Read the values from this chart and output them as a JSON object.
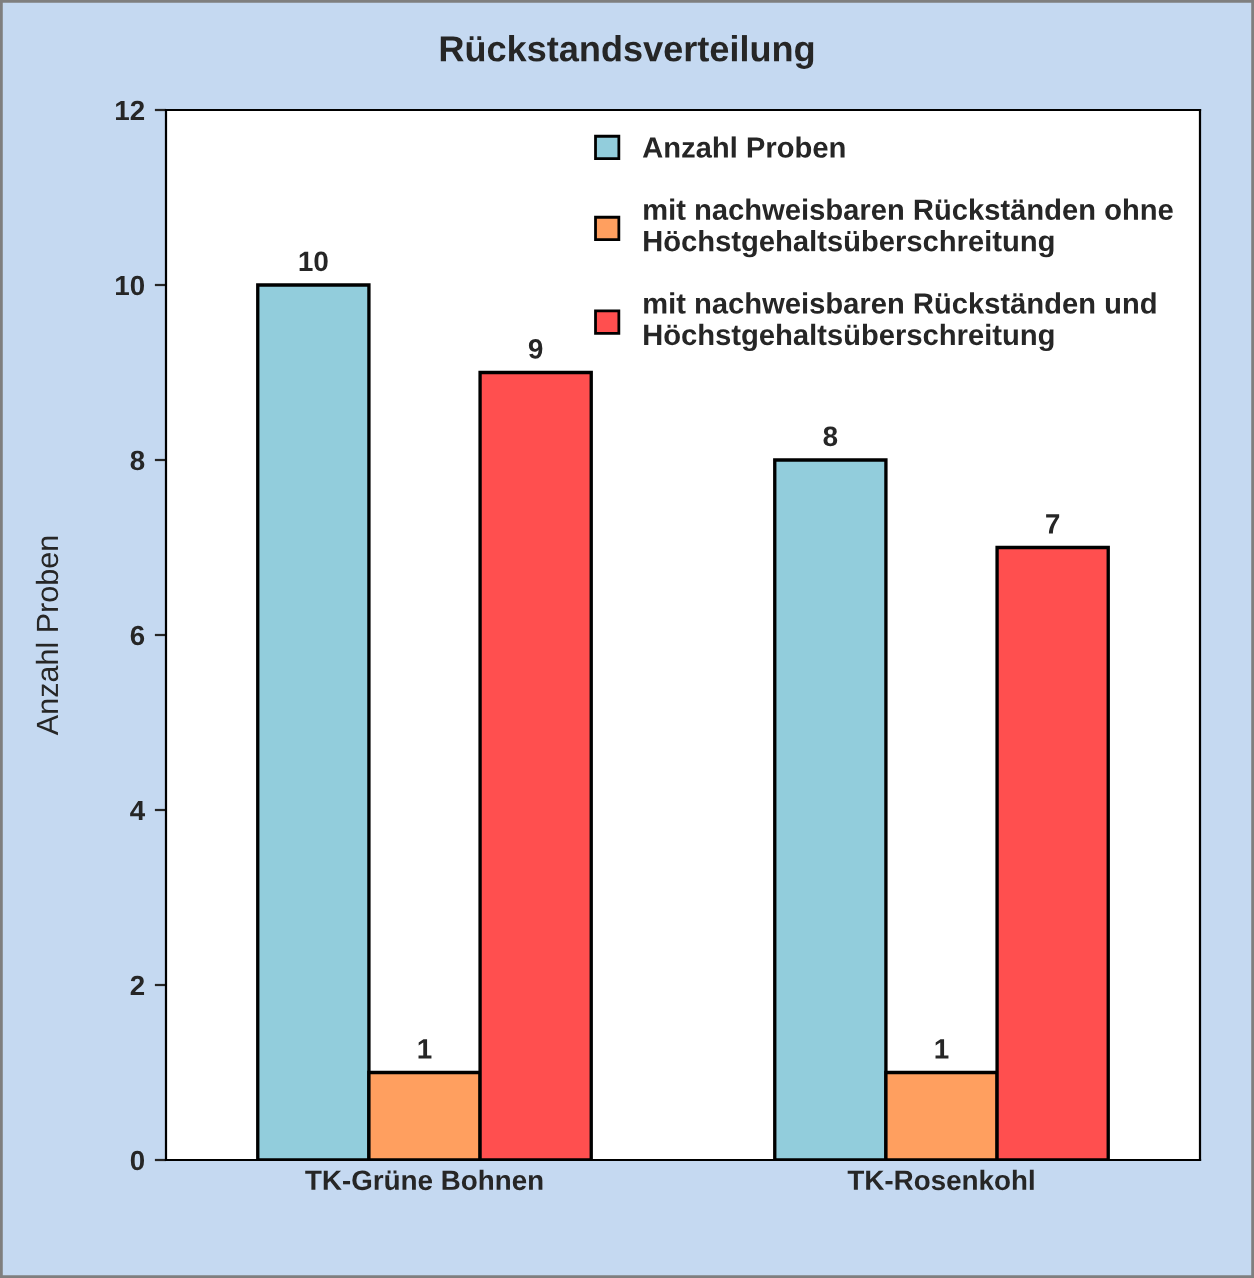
{
  "chart_data": {
    "type": "bar",
    "title": "Rückstandsverteilung",
    "ylabel": "Anzahl Proben",
    "categories": [
      "TK-Grüne Bohnen",
      "TK-Rosenkohl"
    ],
    "series": [
      {
        "name": "Anzahl Proben",
        "color": "#92cddc",
        "values": [
          10,
          8
        ]
      },
      {
        "name": "mit nachweisbaren Rückständen ohne\nHöchstgehaltsüberschreitung",
        "color": "#ff9f5f",
        "values": [
          1,
          1
        ]
      },
      {
        "name": "mit nachweisbaren Rückständen und\nHöchstgehaltsüberschreitung",
        "color": "#ff4f4f",
        "values": [
          9,
          7
        ]
      }
    ],
    "ylim": [
      0,
      12
    ],
    "yticks": [
      0,
      2,
      4,
      6,
      8,
      10,
      12
    ],
    "grid": false,
    "legend": "top right",
    "data_labels": true
  }
}
